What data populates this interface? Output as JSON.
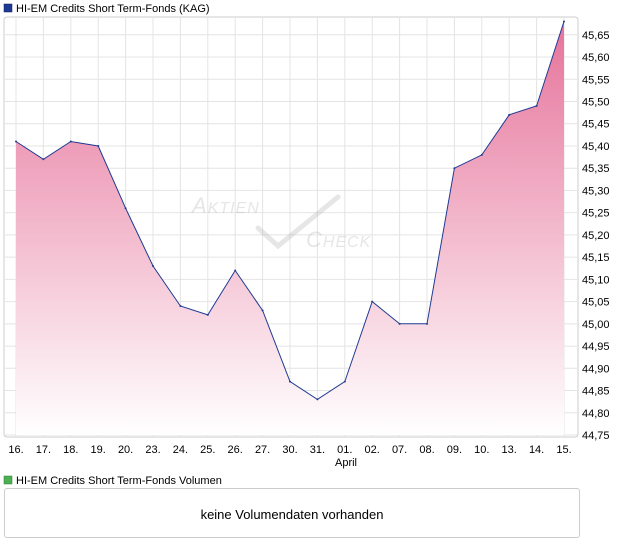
{
  "legend": {
    "series_name": "HI-EM Credits Short Term-Fonds (KAG)",
    "series_color": "#1f3a93",
    "volume_name": "HI-EM Credits Short Term-Fonds Volumen",
    "volume_color": "#4caf50"
  },
  "volume": {
    "message": "keine Volumendaten vorhanden"
  },
  "chart_data": {
    "type": "area",
    "title": "",
    "xlabel": "",
    "ylabel": "",
    "x_tick_labels": [
      "16.",
      "17.",
      "18.",
      "19.",
      "20.",
      "23.",
      "24.",
      "25.",
      "26.",
      "27.",
      "30.",
      "31.",
      "01.",
      "02.",
      "07.",
      "08.",
      "09.",
      "10.",
      "13.",
      "14.",
      "15."
    ],
    "x_month_label": "April",
    "series": [
      {
        "name": "HI-EM Credits Short Term-Fonds (KAG)",
        "values": [
          45.41,
          45.37,
          45.41,
          45.4,
          45.26,
          45.13,
          45.04,
          45.02,
          45.12,
          45.03,
          44.87,
          44.83,
          44.87,
          45.05,
          45.0,
          45.0,
          45.35,
          45.38,
          45.47,
          45.49,
          45.68
        ]
      }
    ],
    "ylim": [
      44.75,
      45.69
    ],
    "y_ticks": [
      "44,75",
      "44,80",
      "44,85",
      "44,90",
      "44,95",
      "45,00",
      "45,05",
      "45,10",
      "45,15",
      "45,20",
      "45,25",
      "45,30",
      "45,35",
      "45,40",
      "45,45",
      "45,50",
      "45,55",
      "45,60",
      "45,65"
    ],
    "grid": true,
    "line_color": "#1f3a93",
    "fill_top_color": "#e6739b",
    "fill_bottom_color": "#ffffff",
    "watermark": "AKTIEN CHECK"
  }
}
